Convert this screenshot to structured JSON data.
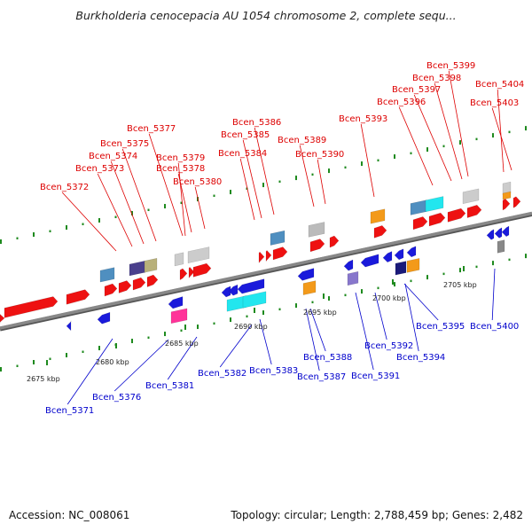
{
  "header": {
    "title": "Burkholderia cenocepacia AU 1054 chromosome 2, complete sequ..."
  },
  "footer": {
    "accession": "Accession: NC_008061",
    "topology": "Topology: circular; Length: 2,788,459 bp; Genes: 2,482"
  },
  "colors": {
    "forward_label": "#dd0000",
    "reverse_label": "#0000cc",
    "backbone": "#888888",
    "tick": "#1e8a1e"
  },
  "scale": {
    "ticks": [
      {
        "label": "2675 kbp"
      },
      {
        "label": "2680 kbp"
      },
      {
        "label": "2685 kbp"
      },
      {
        "label": "2690 kbp"
      },
      {
        "label": "2695 kbp"
      },
      {
        "label": "2700 kbp"
      },
      {
        "label": "2705 kbp"
      }
    ]
  },
  "forward_genes": [
    {
      "name": "Bcen_5372"
    },
    {
      "name": "Bcen_5373"
    },
    {
      "name": "Bcen_5374"
    },
    {
      "name": "Bcen_5375"
    },
    {
      "name": "Bcen_5377"
    },
    {
      "name": "Bcen_5378"
    },
    {
      "name": "Bcen_5379"
    },
    {
      "name": "Bcen_5380"
    },
    {
      "name": "Bcen_5384"
    },
    {
      "name": "Bcen_5385"
    },
    {
      "name": "Bcen_5386"
    },
    {
      "name": "Bcen_5389"
    },
    {
      "name": "Bcen_5390"
    },
    {
      "name": "Bcen_5393"
    },
    {
      "name": "Bcen_5396"
    },
    {
      "name": "Bcen_5397"
    },
    {
      "name": "Bcen_5398"
    },
    {
      "name": "Bcen_5399"
    },
    {
      "name": "Bcen_5403"
    },
    {
      "name": "Bcen_5404"
    }
  ],
  "reverse_genes": [
    {
      "name": "Bcen_5371"
    },
    {
      "name": "Bcen_5376"
    },
    {
      "name": "Bcen_5381"
    },
    {
      "name": "Bcen_5382"
    },
    {
      "name": "Bcen_5383"
    },
    {
      "name": "Bcen_5387"
    },
    {
      "name": "Bcen_5388"
    },
    {
      "name": "Bcen_5391"
    },
    {
      "name": "Bcen_5392"
    },
    {
      "name": "Bcen_5394"
    },
    {
      "name": "Bcen_5395"
    },
    {
      "name": "Bcen_5400"
    }
  ]
}
